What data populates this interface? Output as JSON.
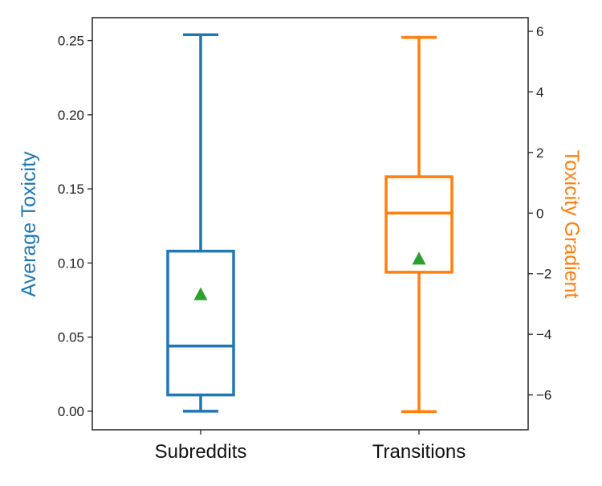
{
  "chart_data": {
    "type": "box",
    "categories": [
      "Subreddits",
      "Transitions"
    ],
    "left_axis": {
      "label": "Average Toxicity",
      "color": "#1f77b4",
      "ylim": [
        -0.0125,
        0.2655
      ],
      "ticks": [
        0.0,
        0.05,
        0.1,
        0.15,
        0.2,
        0.25
      ],
      "tick_labels": [
        "0.00",
        "0.05",
        "0.10",
        "0.15",
        "0.20",
        "0.25"
      ]
    },
    "right_axis": {
      "label": "Toxicity Gradient",
      "color": "#ff7f0e",
      "ylim": [
        -7.15,
        6.45
      ],
      "ticks": [
        -6,
        -4,
        -2,
        0,
        2,
        4,
        6
      ],
      "tick_labels": [
        "−6",
        "−4",
        "−2",
        "0",
        "2",
        "4",
        "6"
      ]
    },
    "series": [
      {
        "name": "Subreddits",
        "axis": "left",
        "color": "#1f77b4",
        "whisker_low": 0.0,
        "q1": 0.011,
        "median": 0.044,
        "q3": 0.108,
        "whisker_high": 0.254,
        "mean": 0.079
      },
      {
        "name": "Transitions",
        "axis": "right",
        "color": "#ff7f0e",
        "whisker_low": -6.55,
        "q1": -1.95,
        "median": 0.0,
        "q3": 1.2,
        "whisker_high": 5.8,
        "mean": -1.5
      }
    ],
    "mean_marker_color": "#2ca02c",
    "grid": false,
    "legend": "none"
  }
}
